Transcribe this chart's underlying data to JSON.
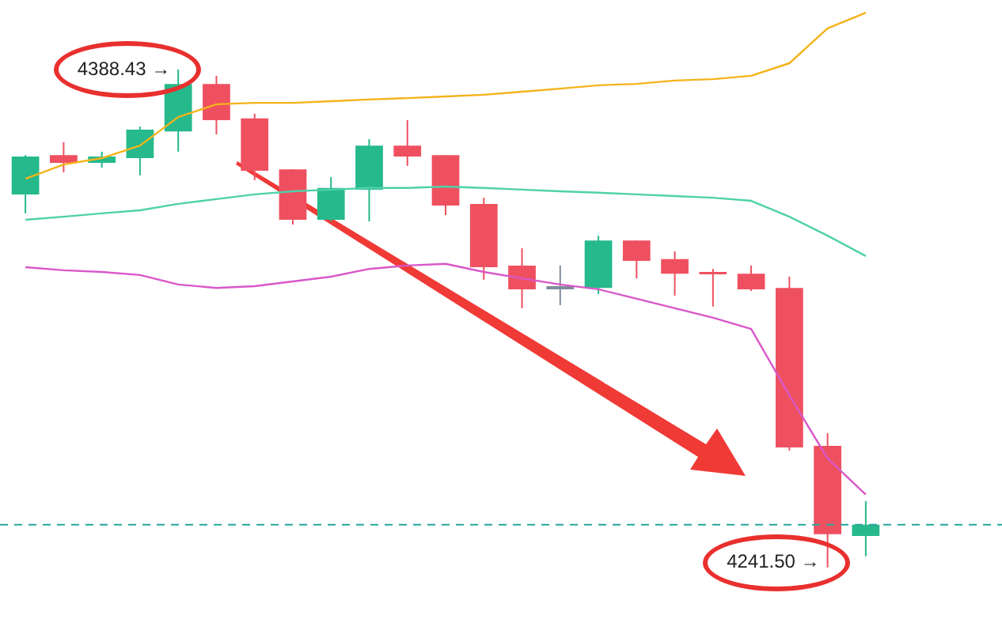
{
  "chart_data": {
    "type": "candlestick",
    "categories": [
      null,
      null,
      null,
      null,
      null,
      null,
      null,
      null,
      null,
      null,
      null,
      null,
      null,
      null,
      null,
      null,
      null,
      null,
      null,
      null,
      null,
      null,
      null
    ],
    "ohlc": [
      [
        4351.6,
        4363.2,
        4346.0,
        4362.8
      ],
      [
        4363.2,
        4367.0,
        4358.1,
        4360.9
      ],
      [
        4360.9,
        4364.2,
        4359.5,
        4362.8
      ],
      [
        4362.3,
        4371.6,
        4357.2,
        4370.7
      ],
      [
        4370.2,
        4388.43,
        4364.2,
        4384.2
      ],
      [
        4384.2,
        4386.6,
        4369.3,
        4373.5
      ],
      [
        4374.0,
        4375.4,
        4355.8,
        4358.6
      ],
      [
        4359.0,
        4359.0,
        4342.7,
        4344.1
      ],
      [
        4344.1,
        4356.7,
        4343.6,
        4353.5
      ],
      [
        4353.0,
        4367.9,
        4343.6,
        4366.0
      ],
      [
        4366.0,
        4373.5,
        4360.0,
        4362.8
      ],
      [
        4363.2,
        4363.2,
        4345.5,
        4348.3
      ],
      [
        4348.8,
        4350.6,
        4326.4,
        4330.1
      ],
      [
        4330.6,
        4335.7,
        4318.0,
        4323.6
      ],
      [
        4323.6,
        4330.6,
        4318.9,
        4324.5
      ],
      [
        4324.0,
        4339.4,
        4322.2,
        4338.0
      ],
      [
        4338.0,
        4338.0,
        4326.8,
        4332.0
      ],
      [
        4332.5,
        4334.8,
        4321.7,
        4328.2
      ],
      [
        4328.7,
        4329.6,
        4318.5,
        4328.2
      ],
      [
        4328.2,
        4330.6,
        4323.1,
        4323.6
      ],
      [
        4324.0,
        4327.3,
        4276.0,
        4276.9
      ],
      [
        4277.4,
        4281.1,
        4241.5,
        4251.3
      ],
      [
        4250.8,
        4261.1,
        4244.8,
        4254.1
      ]
    ],
    "colors": [
      "#26b98c",
      "#ef5060",
      "#26b98c",
      "#26b98c",
      "#26b98c",
      "#ef5060",
      "#ef5060",
      "#ef5060",
      "#26b98c",
      "#26b98c",
      "#ef5060",
      "#ef5060",
      "#ef5060",
      "#ef5060",
      "#7f8c9a",
      "#26b98c",
      "#ef5060",
      "#ef5060",
      "#ef5060",
      "#ef5060",
      "#ef5060",
      "#ef5060",
      "#26b98c"
    ],
    "series": [
      {
        "type": "line",
        "color": "#f5b31a",
        "values": [
          4356.2,
          4360.4,
          4362.3,
          4366.0,
          4374.4,
          4378.2,
          4378.6,
          4378.6,
          4379.1,
          4379.6,
          4380.0,
          4380.5,
          4381.0,
          4381.9,
          4382.8,
          4383.8,
          4384.2,
          4385.2,
          4385.6,
          4386.6,
          4390.3,
          4400.6,
          4405.2
        ]
      },
      {
        "type": "line",
        "color": "#4fd1a9",
        "values": [
          4344.1,
          4345.0,
          4346.0,
          4346.9,
          4348.8,
          4350.2,
          4351.6,
          4352.5,
          4353.0,
          4353.5,
          4353.5,
          4353.9,
          4353.5,
          4353.0,
          4352.5,
          4352.1,
          4351.6,
          4351.1,
          4350.6,
          4349.7,
          4345.0,
          4339.4,
          4333.4
        ]
      },
      {
        "type": "line",
        "color": "#d957c8",
        "values": [
          4330.1,
          4329.2,
          4328.7,
          4327.8,
          4325.0,
          4324.0,
          4324.5,
          4325.9,
          4327.3,
          4329.6,
          4330.6,
          4331.1,
          4328.7,
          4326.8,
          4325.0,
          4323.6,
          4320.8,
          4318.0,
          4315.2,
          4311.9,
          4292.3,
          4273.7,
          4263.0
        ]
      }
    ],
    "tick_labels": false,
    "legend": false,
    "ref_lines": [
      {
        "axis": "y",
        "value": 4254.1,
        "color": "#26a69a",
        "line_style": "dashed"
      }
    ],
    "annotations": [
      "4388.43 →",
      "4241.50 →"
    ]
  }
}
